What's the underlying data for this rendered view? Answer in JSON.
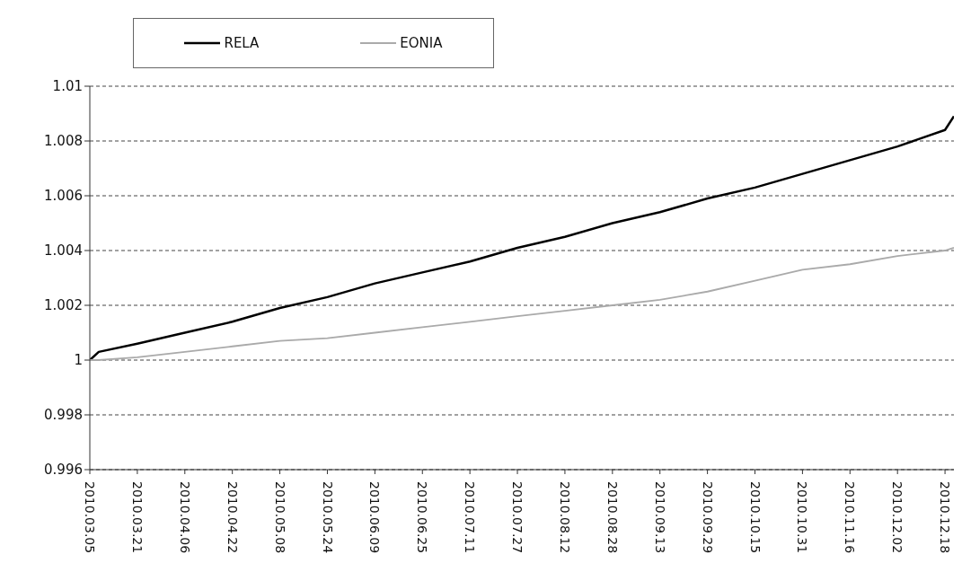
{
  "chart_data": {
    "type": "line",
    "x": [
      "2010-03-05",
      "2010-03-08",
      "2010-03-21",
      "2010-04-06",
      "2010-04-22",
      "2010-05-08",
      "2010-05-24",
      "2010-06-09",
      "2010-06-25",
      "2010-07-11",
      "2010-07-27",
      "2010-08-12",
      "2010-08-28",
      "2010-09-13",
      "2010-09-29",
      "2010-10-15",
      "2010-10-31",
      "2010-11-16",
      "2010-12-02",
      "2010-12-18",
      "2010-12-21"
    ],
    "series": [
      {
        "name": "RELA",
        "color": "#000000",
        "values": [
          1.0,
          1.0003,
          1.0006,
          1.001,
          1.0014,
          1.0019,
          1.0023,
          1.0028,
          1.0032,
          1.0036,
          1.0041,
          1.0045,
          1.005,
          1.0054,
          1.0059,
          1.0063,
          1.0068,
          1.0073,
          1.0078,
          1.0084,
          1.0089
        ]
      },
      {
        "name": "EONIA",
        "color": "#aaaaaa",
        "values": [
          1.0,
          1.0,
          1.0001,
          1.0003,
          1.0005,
          1.0007,
          1.0008,
          1.001,
          1.0012,
          1.0014,
          1.0016,
          1.0018,
          1.002,
          1.0022,
          1.0025,
          1.0029,
          1.0033,
          1.0035,
          1.0038,
          1.004,
          1.0041
        ]
      }
    ],
    "xlim": [
      "2010-03-05",
      "2010-12-21"
    ],
    "xticks": [
      {
        "value": "2010-03-05",
        "label": "2010.03.05"
      },
      {
        "value": "2010-03-21",
        "label": "2010.03.21"
      },
      {
        "value": "2010-04-06",
        "label": "2010.04.06"
      },
      {
        "value": "2010-04-22",
        "label": "2010.04.22"
      },
      {
        "value": "2010-05-08",
        "label": "2010.05.08"
      },
      {
        "value": "2010-05-24",
        "label": "2010.05.24"
      },
      {
        "value": "2010-06-09",
        "label": "2010.06.09"
      },
      {
        "value": "2010-06-25",
        "label": "2010.06.25"
      },
      {
        "value": "2010-07-11",
        "label": "2010.07.11"
      },
      {
        "value": "2010-07-27",
        "label": "2010.07.27"
      },
      {
        "value": "2010-08-12",
        "label": "2010.08.12"
      },
      {
        "value": "2010-08-28",
        "label": "2010.08.28"
      },
      {
        "value": "2010-09-13",
        "label": "2010.09.13"
      },
      {
        "value": "2010-09-29",
        "label": "2010.09.29"
      },
      {
        "value": "2010-10-15",
        "label": "2010.10.15"
      },
      {
        "value": "2010-10-31",
        "label": "2010.10.31"
      },
      {
        "value": "2010-11-16",
        "label": "2010.11.16"
      },
      {
        "value": "2010-12-02",
        "label": "2010.12.02"
      },
      {
        "value": "2010-12-18",
        "label": "2010.12.18"
      }
    ],
    "ylim": [
      0.996,
      1.01
    ],
    "yticks": [
      0.996,
      0.998,
      1,
      1.002,
      1.004,
      1.006,
      1.008,
      1.01
    ],
    "grid": "y",
    "legend": "top left",
    "marker": "none",
    "line_style": "solid"
  }
}
